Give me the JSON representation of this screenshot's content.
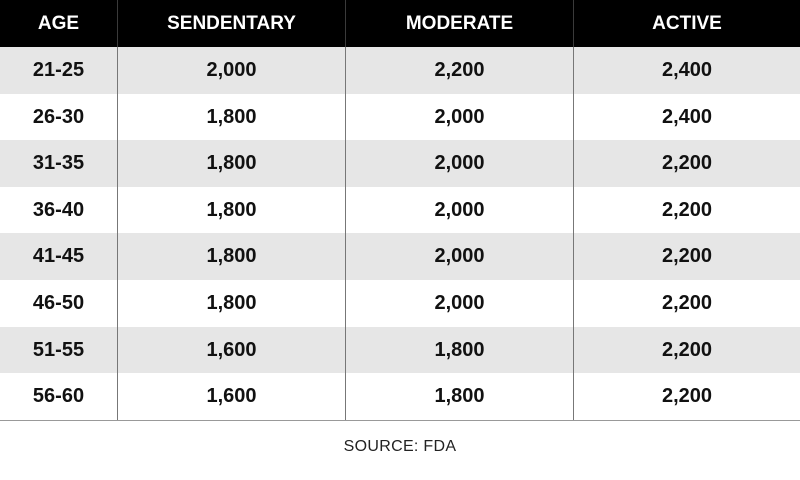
{
  "chart_data": {
    "type": "table",
    "columns": [
      "AGE",
      "SENDENTARY",
      "MODERATE",
      "ACTIVE"
    ],
    "rows": [
      [
        "21-25",
        "2,000",
        "2,200",
        "2,400"
      ],
      [
        "26-30",
        "1,800",
        "2,000",
        "2,400"
      ],
      [
        "31-35",
        "1,800",
        "2,000",
        "2,200"
      ],
      [
        "36-40",
        "1,800",
        "2,000",
        "2,200"
      ],
      [
        "41-45",
        "1,800",
        "2,000",
        "2,200"
      ],
      [
        "46-50",
        "1,800",
        "2,000",
        "2,200"
      ],
      [
        "51-55",
        "1,600",
        "1,800",
        "2,200"
      ],
      [
        "56-60",
        "1,600",
        "1,800",
        "2,200"
      ]
    ],
    "source": "SOURCE: FDA"
  },
  "colors": {
    "header_bg": "#000000",
    "header_text": "#ffffff",
    "shaded_row": "#e6e6e6",
    "plain_row": "#ffffff"
  }
}
